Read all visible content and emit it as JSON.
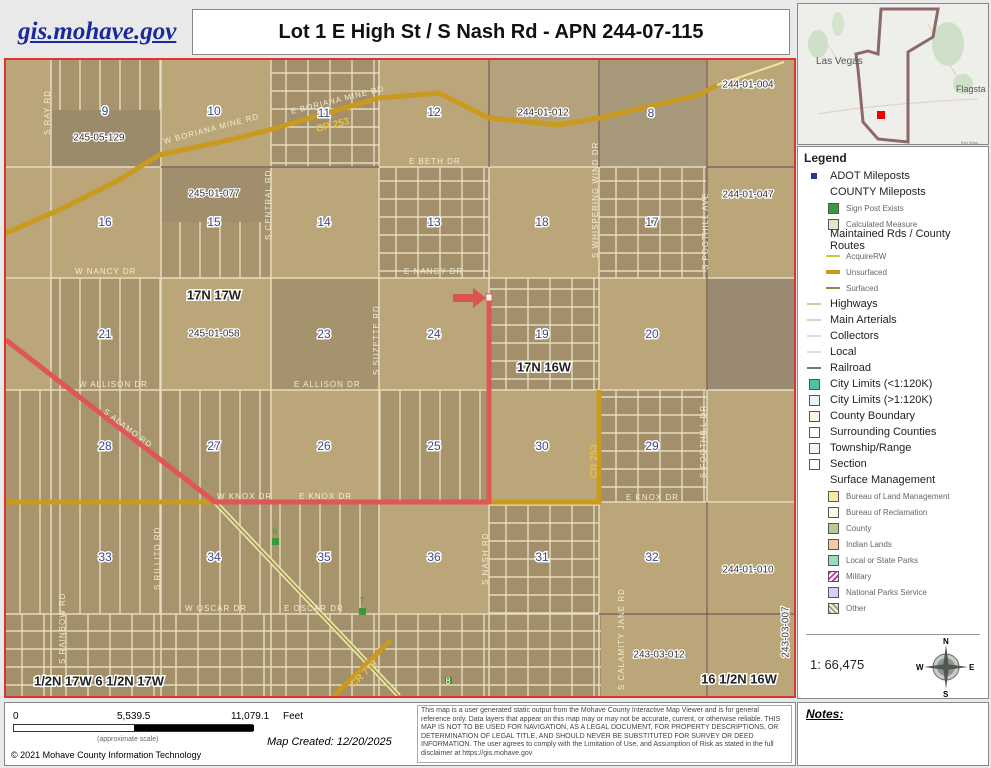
{
  "header": {
    "site_link": "gis.mohave.gov",
    "title": "Lot 1 E High St / S Nash Rd - APN 244-07-115"
  },
  "inset": {
    "labels": [
      "Las Vegas",
      "Flagsta"
    ],
    "attribution": "Esri Wom"
  },
  "map": {
    "sections": [
      "9",
      "10",
      "11",
      "12",
      "8",
      "16",
      "15",
      "14",
      "13",
      "18",
      "17",
      "21",
      "23",
      "24",
      "19",
      "20",
      "28",
      "27",
      "26",
      "25",
      "30",
      "29",
      "33",
      "34",
      "35",
      "36",
      "31",
      "32"
    ],
    "parcels": [
      "245-05-129",
      "245-01-077",
      "245-01-058",
      "244-01-012",
      "244-01-004",
      "244-01-047",
      "244-01-010",
      "243-03-012",
      "243-03-007"
    ],
    "townships": [
      "17N 17W",
      "17N 16W",
      "1/2N 17W 6 1/2N 17W",
      "16 1/2N 16W"
    ],
    "roads": {
      "ray": "S RAY RD",
      "boriana_w": "W BORIANA MINE RD",
      "boriana_e": "E BORIANA MINE RD",
      "central": "S CENTRAL RD",
      "beth": "E BETH DR",
      "whispering": "S WHISPERING WIND DR",
      "foothill_ave": "S FOOTHILL AVE",
      "nancy_w": "W NANCY DR",
      "nancy_e": "E NANCY DR",
      "suzette": "S SUZETTE RD",
      "allison_w": "W ALLISON DR",
      "allison_e": "E ALLISON DR",
      "alamo": "S ALAMO RD",
      "knox_w": "W KNOX DR",
      "knox_e": "E KNOX DR",
      "knox_e2": "E KNOX DR",
      "foothill_dr": "S FOOTHILL DR",
      "rillito": "S RILLITO RD",
      "oscar_w": "W OSCAR DR",
      "oscar_e": "E OSCAR DR",
      "nash": "S NASH RD",
      "calamity": "S CALAMITY JANE RD",
      "rainbow": "S RAINBOW RD",
      "cr253": "CR 253",
      "cr253b": "CR 253",
      "cr770": "CR 770"
    },
    "mileposts": [
      "6",
      "7",
      "8"
    ],
    "colors": {
      "route_red": "#e05555",
      "unsurfaced": "#c99a1e",
      "frame": "#dd3333",
      "marker": "#d9534f"
    }
  },
  "legend": {
    "title": "Legend",
    "items": [
      {
        "label": "ADOT Mileposts",
        "kind": "sq",
        "color": "#1f3a93"
      },
      {
        "label": "COUNTY Mileposts",
        "kind": "head"
      },
      {
        "label": "Sign Post Exists",
        "kind": "subsq",
        "color": "#3a9a3a"
      },
      {
        "label": "Calculated Measure",
        "kind": "subsq",
        "color": "#dfe8c8"
      },
      {
        "label": "Maintained Rds / County Routes",
        "kind": "head"
      },
      {
        "label": "AcquireRW",
        "kind": "subln",
        "color": "#c8c84a"
      },
      {
        "label": "Unsurfaced",
        "kind": "subln",
        "color": "#c99a1e"
      },
      {
        "label": "Surfaced",
        "kind": "subln",
        "color": "#8a8a50"
      },
      {
        "label": "Highways",
        "kind": "ln",
        "color": "#c8d0a8"
      },
      {
        "label": "Main Arterials",
        "kind": "ln",
        "color": "#d4d8b8"
      },
      {
        "label": "Collectors",
        "kind": "ln",
        "color": "#e0e0d0"
      },
      {
        "label": "Local",
        "kind": "ln",
        "color": "#e0e0e0"
      },
      {
        "label": "Railroad",
        "kind": "ln",
        "color": "#777"
      },
      {
        "label": "City Limits (<1:120K)",
        "kind": "sq",
        "color": "#4cc2a8"
      },
      {
        "label": "City Limits (>1:120K)",
        "kind": "sq",
        "color": "#e8f8f4"
      },
      {
        "label": "County Boundary",
        "kind": "sq",
        "color": "#fff4e6"
      },
      {
        "label": "Surrounding Counties",
        "kind": "sq",
        "color": "#ffffff"
      },
      {
        "label": "Township/Range",
        "kind": "sq",
        "color": "#fdf0f6"
      },
      {
        "label": "Section",
        "kind": "sq",
        "color": "#ffffff"
      },
      {
        "label": "Surface Management",
        "kind": "head"
      },
      {
        "label": "Bureau of Land Management",
        "kind": "subsq",
        "color": "#f8ec9c"
      },
      {
        "label": "Bureau of Reclamation",
        "kind": "subsq",
        "color": "#fbfbe8"
      },
      {
        "label": "County",
        "kind": "subsq",
        "color": "#b8c890"
      },
      {
        "label": "Indian Lands",
        "kind": "subsq",
        "color": "#f8c8a8"
      },
      {
        "label": "Local or State Parks",
        "kind": "subsq",
        "color": "#98dcc0"
      },
      {
        "label": "Military",
        "kind": "subsq",
        "color": "#e8b0e0"
      },
      {
        "label": "National Parks Service",
        "kind": "subsq",
        "color": "#d8d0f8"
      },
      {
        "label": "Other",
        "kind": "subsq",
        "color": "#d8ccb8"
      }
    ],
    "scale": "1: 66,475",
    "compass": {
      "n": "N",
      "s": "S",
      "e": "E",
      "w": "W"
    }
  },
  "footer": {
    "scale_ticks": [
      "0",
      "5,539.5",
      "11,079.1"
    ],
    "scale_unit": "Feet",
    "approx": "(approximate scale)",
    "copyright": "© 2021 Mohave County Information Technology",
    "created": "Map Created: 12/20/2025",
    "disclaimer": "This map is a user generated static output from the Mohave County Interactive Map Viewer and is for general reference only. Data layers that appear on this map may or may not be accurate, current, or otherwise reliable. THIS MAP IS NOT TO BE USED FOR NAVIGATION, AS A LEGAL DOCUMENT, FOR PROPERTY DESCRIPTIONS, OR DETERMINATION OF LEGAL TITLE, AND SHOULD NEVER BE SUBSTITUTED FOR SURVEY OR DEED INFORMATION. The user agrees to comply with the Limitation of Use, and Assumption of Risk as stated in the full disclaimer at https://gis.mohave.gov"
  },
  "notes": {
    "label": "Notes:"
  }
}
